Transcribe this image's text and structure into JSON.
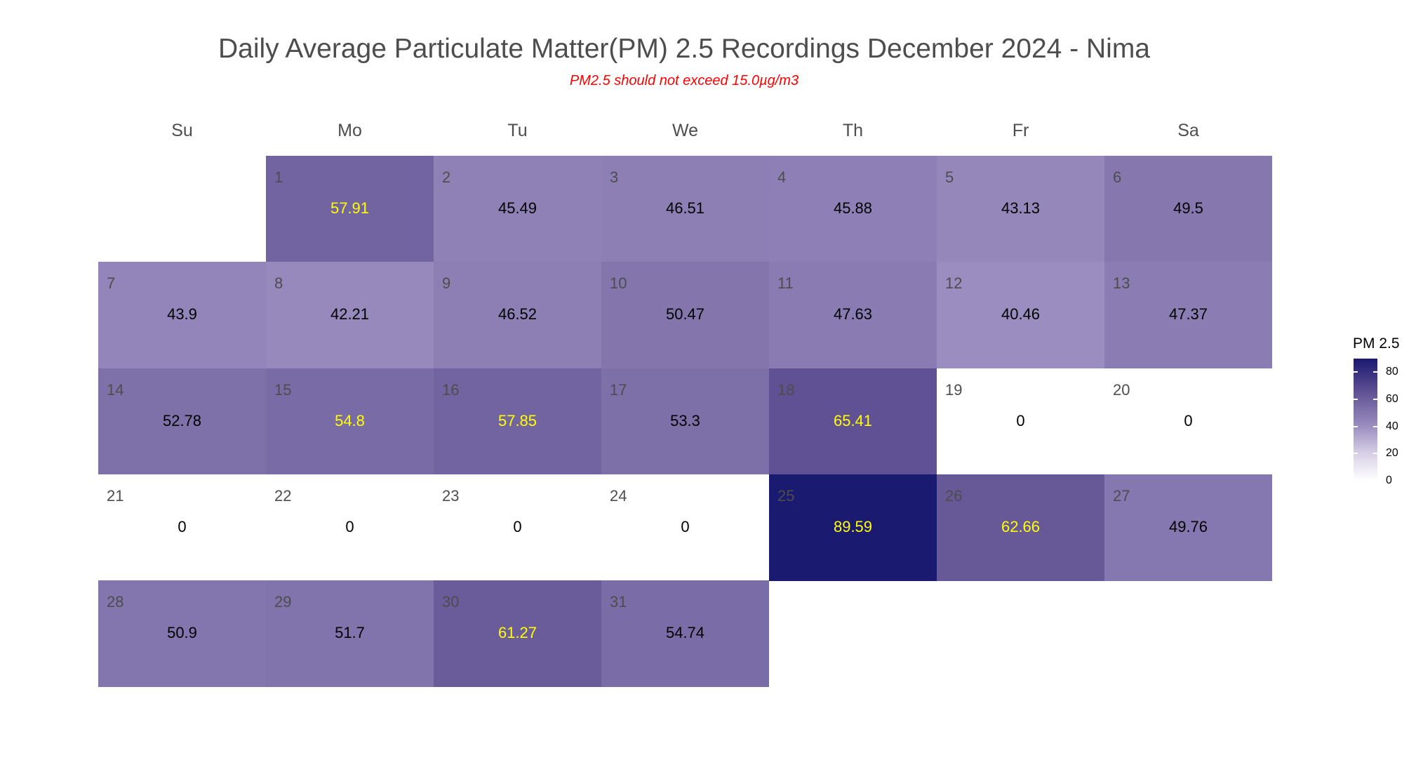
{
  "chart_data": {
    "type": "heatmap",
    "title": "Daily Average Particulate Matter(PM) 2.5 Recordings December 2024 -  Nima",
    "subtitle": "PM2.5 should not exceed 15.0µg/m3",
    "weekdays": [
      "Su",
      "Mo",
      "Tu",
      "We",
      "Th",
      "Fr",
      "Sa"
    ],
    "first_weekday_index": 1,
    "days": [
      {
        "day": "1",
        "value": "57.91"
      },
      {
        "day": "2",
        "value": "45.49"
      },
      {
        "day": "3",
        "value": "46.51"
      },
      {
        "day": "4",
        "value": "45.88"
      },
      {
        "day": "5",
        "value": "43.13"
      },
      {
        "day": "6",
        "value": "49.5"
      },
      {
        "day": "7",
        "value": "43.9"
      },
      {
        "day": "8",
        "value": "42.21"
      },
      {
        "day": "9",
        "value": "46.52"
      },
      {
        "day": "10",
        "value": "50.47"
      },
      {
        "day": "11",
        "value": "47.63"
      },
      {
        "day": "12",
        "value": "40.46"
      },
      {
        "day": "13",
        "value": "47.37"
      },
      {
        "day": "14",
        "value": "52.78"
      },
      {
        "day": "15",
        "value": "54.8"
      },
      {
        "day": "16",
        "value": "57.85"
      },
      {
        "day": "17",
        "value": "53.3"
      },
      {
        "day": "18",
        "value": "65.41"
      },
      {
        "day": "19",
        "value": "0"
      },
      {
        "day": "20",
        "value": "0"
      },
      {
        "day": "21",
        "value": "0"
      },
      {
        "day": "22",
        "value": "0"
      },
      {
        "day": "23",
        "value": "0"
      },
      {
        "day": "24",
        "value": "0"
      },
      {
        "day": "25",
        "value": "89.59"
      },
      {
        "day": "26",
        "value": "62.66"
      },
      {
        "day": "27",
        "value": "49.76"
      },
      {
        "day": "28",
        "value": "50.9"
      },
      {
        "day": "29",
        "value": "51.7"
      },
      {
        "day": "30",
        "value": "61.27"
      },
      {
        "day": "31",
        "value": "54.74"
      }
    ],
    "legend": {
      "title": "PM 2.5",
      "ticks": [
        "0",
        "20",
        "40",
        "60",
        "80"
      ],
      "range": [
        0,
        90
      ],
      "position": "right"
    },
    "colors": {
      "low": "#ffffff",
      "high": "#191970",
      "label_high": "#ffff00",
      "label_low": "#000000"
    }
  }
}
